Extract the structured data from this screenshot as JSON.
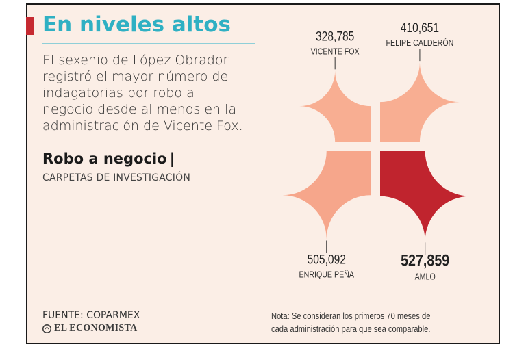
{
  "header": {
    "title": "En niveles altos",
    "intro": "El sexenio de López Obrador registró el mayor número de indagatorias por robo a negocio desde al menos en la administración de Vicente Fox.",
    "subtitle": "Robo a negocio",
    "subtitle_separator": "|",
    "units": "CARPETAS DE INVESTIGACIÓN"
  },
  "footer": {
    "source": "FUENTE: COPARMEX",
    "brand": "EL ECONOMISTA",
    "note": "Nota: Se consideran los primeros 70 meses de cada administración para que sea comparable."
  },
  "colors": {
    "accent": "#c62a31",
    "title": "#2fb0c3",
    "petal": "#f8ae92",
    "petal_mid": "#f6a68b",
    "highlight": "#c0242e",
    "background": "#fbeee6"
  },
  "chart_data": {
    "type": "proportional-area",
    "categories": [
      "VICENTE FOX",
      "FELIPE CALDERÓN",
      "ENRIQUE PEÑA",
      "AMLO"
    ],
    "values": [
      328785,
      410651,
      505092,
      527859
    ],
    "value_labels": [
      "328,785",
      "410,651",
      "505,092",
      "527,859"
    ],
    "highlight": "AMLO"
  }
}
